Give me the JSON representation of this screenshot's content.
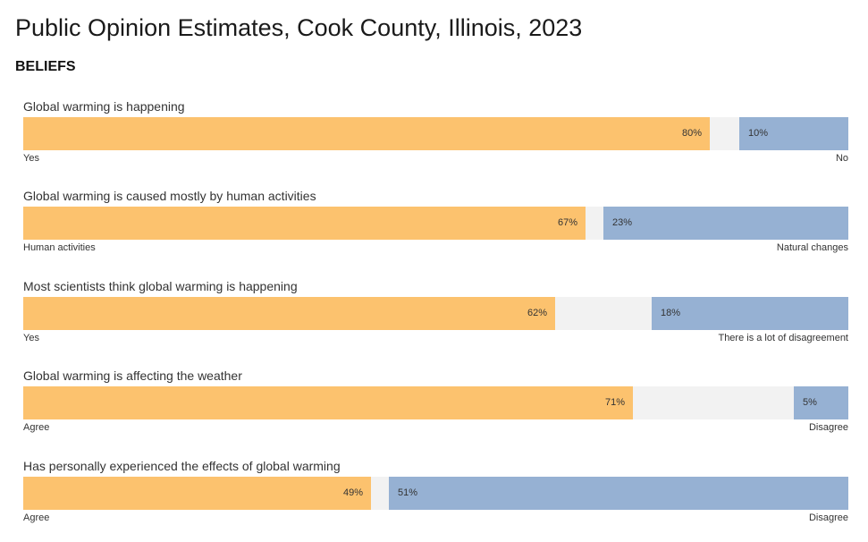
{
  "chart_data": {
    "type": "bar",
    "title": "Public Opinion Estimates, Cook County, Illinois, 2023",
    "section": "BELIEFS",
    "colors": {
      "left": "#fcc26e",
      "right": "#96b1d3",
      "neutral": "#f2f2f2"
    },
    "items": [
      {
        "question": "Global warming is happening",
        "left_value": 80,
        "right_value": 10,
        "left_text": "80%",
        "right_text": "10%",
        "left_label": "Yes",
        "right_label": "No"
      },
      {
        "question": "Global warming is caused mostly by human activities",
        "left_value": 67,
        "right_value": 23,
        "left_text": "67%",
        "right_text": "23%",
        "left_label": "Human activities",
        "right_label": "Natural changes"
      },
      {
        "question": "Most scientists think global warming is happening",
        "left_value": 62,
        "right_value": 18,
        "left_text": "62%",
        "right_text": "18%",
        "left_label": "Yes",
        "right_label": "There is a lot of disagreement"
      },
      {
        "question": "Global warming is affecting the weather",
        "left_value": 71,
        "right_value": 5,
        "left_text": "71%",
        "right_text": "5%",
        "left_label": "Agree",
        "right_label": "Disagree"
      },
      {
        "question": "Has personally experienced the effects of global warming",
        "left_value": 49,
        "right_value": 51,
        "left_text": "49%",
        "right_text": "51%",
        "left_label": "Agree",
        "right_label": "Disagree"
      }
    ]
  }
}
